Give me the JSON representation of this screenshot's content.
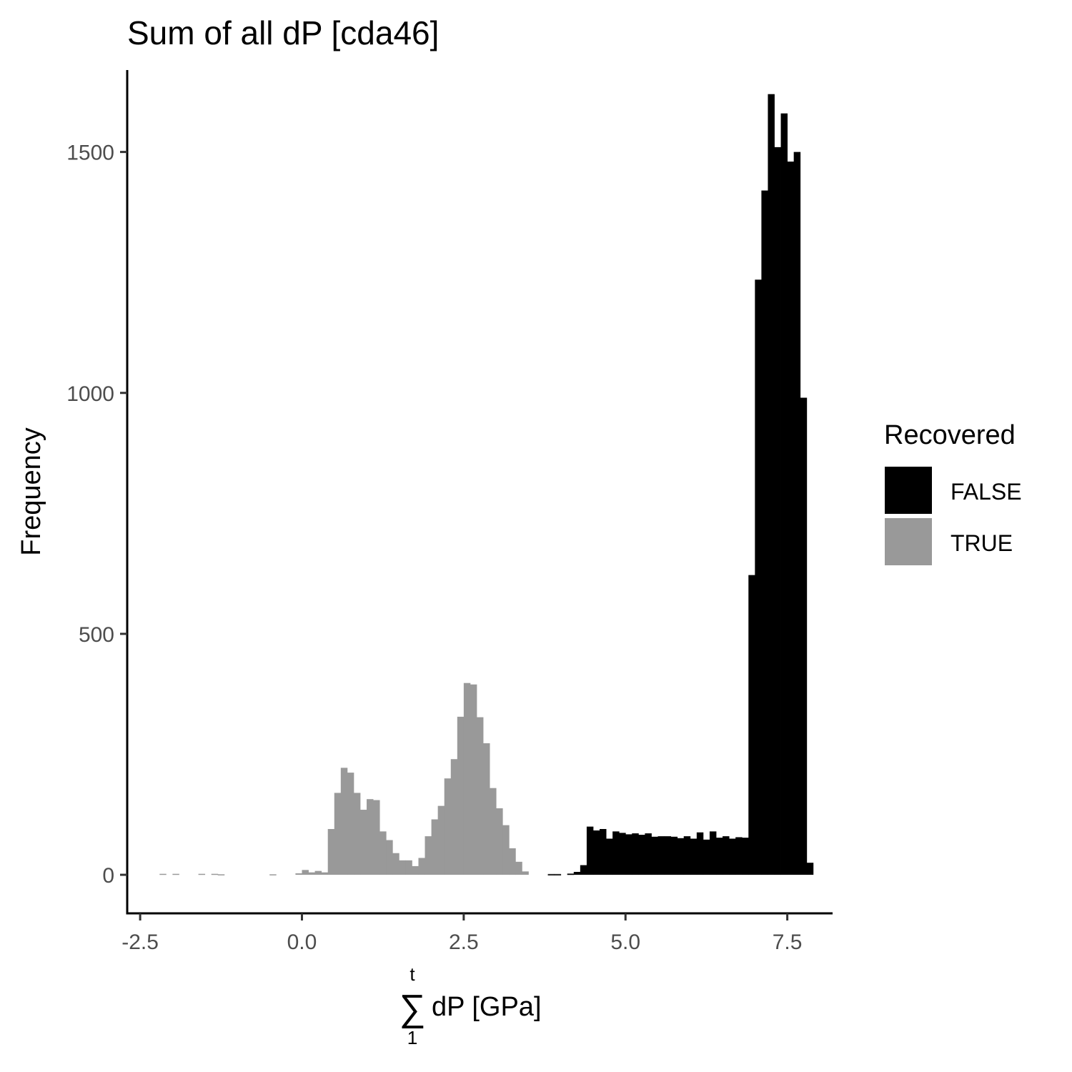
{
  "chart_data": {
    "type": "bar",
    "title": "Sum of all dP [cda46]",
    "xlabel": {
      "sum_upper": "t",
      "sum_lower": "1",
      "text": "dP [GPa]"
    },
    "ylabel": "Frequency",
    "xlim": [
      -2.7,
      8.2
    ],
    "ylim": [
      -80,
      1670
    ],
    "x_ticks": [
      {
        "value": -2.5,
        "label": "-2.5"
      },
      {
        "value": 0,
        "label": "0.0"
      },
      {
        "value": 2.5,
        "label": "2.5"
      },
      {
        "value": 5,
        "label": "5.0"
      },
      {
        "value": 7.5,
        "label": "7.5"
      }
    ],
    "y_ticks": [
      {
        "value": 0,
        "label": "0"
      },
      {
        "value": 500,
        "label": "500"
      },
      {
        "value": 1000,
        "label": "1000"
      },
      {
        "value": 1500,
        "label": "1500"
      }
    ],
    "bin_width": 0.1,
    "legend": {
      "title": "Recovered",
      "position": "right",
      "entries": [
        {
          "label": "FALSE",
          "color": "#000000"
        },
        {
          "label": "TRUE",
          "color": "#999999"
        }
      ]
    },
    "series": [
      {
        "name": "TRUE",
        "color": "#999999",
        "bins": [
          [
            -2.2,
            2
          ],
          [
            -2.0,
            2
          ],
          [
            -1.6,
            2
          ],
          [
            -1.4,
            2
          ],
          [
            -1.3,
            1
          ],
          [
            -0.5,
            1
          ],
          [
            -0.1,
            3
          ],
          [
            0.0,
            10
          ],
          [
            0.1,
            5
          ],
          [
            0.2,
            8
          ],
          [
            0.3,
            5
          ],
          [
            0.4,
            95
          ],
          [
            0.5,
            170
          ],
          [
            0.6,
            222
          ],
          [
            0.7,
            212
          ],
          [
            0.8,
            170
          ],
          [
            0.9,
            135
          ],
          [
            1.0,
            157
          ],
          [
            1.1,
            155
          ],
          [
            1.2,
            90
          ],
          [
            1.3,
            72
          ],
          [
            1.4,
            45
          ],
          [
            1.5,
            30
          ],
          [
            1.6,
            30
          ],
          [
            1.7,
            18
          ],
          [
            1.8,
            35
          ],
          [
            1.9,
            80
          ],
          [
            2.0,
            115
          ],
          [
            2.1,
            143
          ],
          [
            2.2,
            200
          ],
          [
            2.3,
            240
          ],
          [
            2.4,
            328
          ],
          [
            2.5,
            398
          ],
          [
            2.6,
            395
          ],
          [
            2.7,
            327
          ],
          [
            2.8,
            273
          ],
          [
            2.9,
            180
          ],
          [
            3.0,
            138
          ],
          [
            3.1,
            103
          ],
          [
            3.2,
            55
          ],
          [
            3.3,
            27
          ],
          [
            3.4,
            7
          ],
          [
            3.8,
            2
          ],
          [
            3.9,
            2
          ],
          [
            4.1,
            3
          ]
        ]
      },
      {
        "name": "FALSE",
        "color": "#000000",
        "bins": [
          [
            3.8,
            1
          ],
          [
            3.9,
            1
          ],
          [
            4.1,
            2
          ],
          [
            4.2,
            6
          ],
          [
            4.3,
            20
          ],
          [
            4.4,
            100
          ],
          [
            4.5,
            92
          ],
          [
            4.6,
            95
          ],
          [
            4.7,
            75
          ],
          [
            4.8,
            90
          ],
          [
            4.9,
            87
          ],
          [
            5.0,
            84
          ],
          [
            5.1,
            86
          ],
          [
            5.2,
            83
          ],
          [
            5.3,
            86
          ],
          [
            5.4,
            79
          ],
          [
            5.5,
            80
          ],
          [
            5.6,
            80
          ],
          [
            5.7,
            79
          ],
          [
            5.8,
            76
          ],
          [
            5.9,
            80
          ],
          [
            6.0,
            75
          ],
          [
            6.1,
            88
          ],
          [
            6.2,
            73
          ],
          [
            6.3,
            90
          ],
          [
            6.4,
            77
          ],
          [
            6.5,
            80
          ],
          [
            6.6,
            75
          ],
          [
            6.7,
            78
          ],
          [
            6.8,
            77
          ],
          [
            6.9,
            622
          ],
          [
            7.0,
            1235
          ],
          [
            7.1,
            1420
          ],
          [
            7.2,
            1620
          ],
          [
            7.3,
            1510
          ],
          [
            7.4,
            1580
          ],
          [
            7.5,
            1480
          ],
          [
            7.6,
            1500
          ],
          [
            7.7,
            990
          ],
          [
            7.8,
            25
          ]
        ]
      }
    ]
  }
}
